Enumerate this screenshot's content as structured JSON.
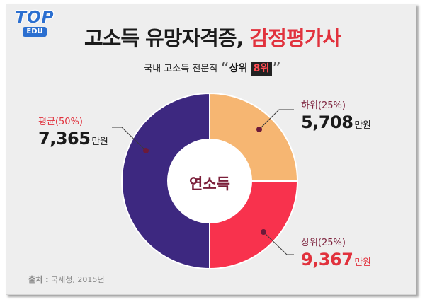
{
  "logo": {
    "text_top": "TOP",
    "text_edu": "EDU",
    "color": "#2b6fd0"
  },
  "title": {
    "part1": "고소득 유망자격증, ",
    "part2": "감정평가사"
  },
  "subtitle": {
    "prefix": "국내 고소득 전문직",
    "open_quote": "“",
    "close_quote": "”",
    "highlight_word": "상위",
    "highlight_rank": "8위"
  },
  "chart_data": {
    "type": "pie",
    "donut": true,
    "center_label": "연소득",
    "unit": "만원",
    "slices": [
      {
        "category": "하위(25%)",
        "percent": 25,
        "value": "5,708",
        "color": "#f6b672"
      },
      {
        "category": "상위(25%)",
        "percent": 25,
        "value": "9,367",
        "color": "#f8324d"
      },
      {
        "category": "평균(50%)",
        "percent": 50,
        "value": "7,365",
        "color": "#3d2880"
      }
    ]
  },
  "labels": {
    "lower": {
      "category": "하위(25%)",
      "value": "5,708",
      "unit": "만원",
      "cat_color": "#7b1f3a",
      "val_color": "#1a1a1a"
    },
    "upper": {
      "category": "상위(25%)",
      "value": "9,367",
      "unit": "만원",
      "cat_color": "#7b1f3a",
      "val_color": "#e1323d"
    },
    "average": {
      "category": "평균(50%)",
      "value": "7,365",
      "unit": "만원",
      "cat_color": "#e1323d",
      "val_color": "#1a1a1a"
    }
  },
  "source": {
    "label": "출처 :",
    "text": "국세청, 2015년"
  }
}
